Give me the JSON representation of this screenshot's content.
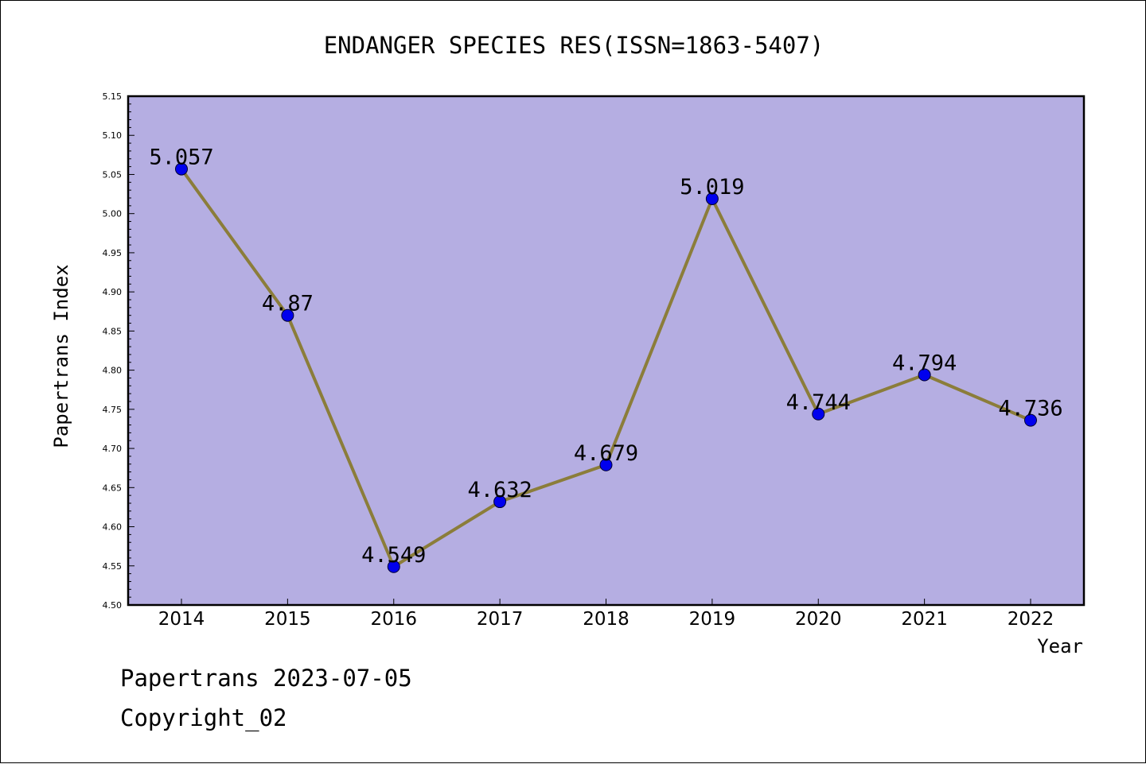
{
  "chart_data": {
    "type": "line",
    "title": "ENDANGER SPECIES RES(ISSN=1863-5407)",
    "xlabel": "Year",
    "ylabel": "Papertrans Index",
    "categories": [
      "2014",
      "2015",
      "2016",
      "2017",
      "2018",
      "2019",
      "2020",
      "2021",
      "2022"
    ],
    "values": [
      5.057,
      4.87,
      4.549,
      4.632,
      4.679,
      5.019,
      4.744,
      4.794,
      4.736
    ],
    "data_labels": [
      "5.057",
      "4.87",
      "4.549",
      "4.632",
      "4.679",
      "5.019",
      "4.744",
      "4.794",
      "4.736"
    ],
    "ylim": [
      4.5,
      5.15
    ],
    "yticks": [
      "4.50",
      "4.55",
      "4.60",
      "4.65",
      "4.70",
      "4.75",
      "4.80",
      "4.85",
      "4.90",
      "4.95",
      "5.00",
      "5.05",
      "5.10",
      "5.15"
    ],
    "grid": false,
    "colors": {
      "plot_background": "#b5aee2",
      "line": "#8b7d3a",
      "marker": "#0000ee"
    }
  },
  "footer": {
    "line1": "Papertrans 2023-07-05",
    "line2": "Copyright_02"
  }
}
